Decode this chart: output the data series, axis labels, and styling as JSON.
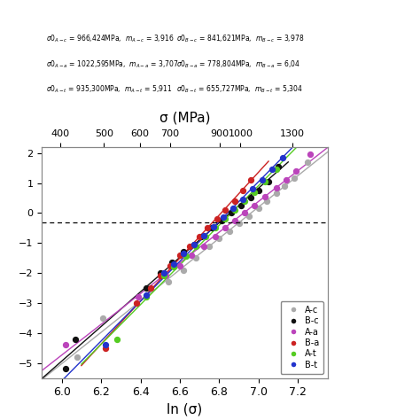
{
  "title_top": "σ (MPa)",
  "xlabel": "ln (σ)",
  "top_ticks": [
    400,
    500,
    600,
    700,
    900,
    1000,
    1300
  ],
  "xlim": [
    5.9,
    7.35
  ],
  "ylim": [
    -5.5,
    2.2
  ],
  "dotted_line_y": -0.3,
  "series": [
    {
      "label": "A-c",
      "color": "#aaaaaa",
      "data_x": [
        6.08,
        6.21,
        6.54,
        6.62,
        6.68,
        6.75,
        6.8,
        6.85,
        6.9,
        6.95,
        7.0,
        7.04,
        7.09,
        7.13,
        7.18,
        7.25
      ],
      "data_y": [
        -4.8,
        -3.5,
        -2.3,
        -1.9,
        -1.5,
        -1.1,
        -0.85,
        -0.6,
        -0.35,
        -0.1,
        0.15,
        0.4,
        0.65,
        0.9,
        1.15,
        1.7
      ],
      "line_x": [
        5.9,
        7.35
      ]
    },
    {
      "label": "B-c",
      "color": "#111111",
      "data_x": [
        6.02,
        6.07,
        6.43,
        6.5,
        6.56,
        6.62,
        6.67,
        6.71,
        6.76,
        6.81,
        6.86,
        6.91,
        6.96,
        7.0,
        7.05,
        7.1
      ],
      "data_y": [
        -5.2,
        -4.2,
        -2.5,
        -2.0,
        -1.65,
        -1.3,
        -1.05,
        -0.8,
        -0.5,
        -0.25,
        0.0,
        0.25,
        0.5,
        0.75,
        1.05,
        1.55
      ],
      "line_x": [
        5.9,
        7.15
      ]
    },
    {
      "label": "A-a",
      "color": "#bb44bb",
      "data_x": [
        6.02,
        6.39,
        6.53,
        6.6,
        6.66,
        6.72,
        6.78,
        6.83,
        6.88,
        6.93,
        6.98,
        7.03,
        7.09,
        7.14,
        7.19,
        7.26
      ],
      "data_y": [
        -4.4,
        -2.8,
        -2.1,
        -1.75,
        -1.4,
        -1.1,
        -0.8,
        -0.5,
        -0.25,
        0.0,
        0.25,
        0.55,
        0.85,
        1.1,
        1.4,
        1.95
      ],
      "line_x": [
        5.9,
        7.35
      ]
    },
    {
      "label": "B-a",
      "color": "#cc2222",
      "data_x": [
        6.22,
        6.38,
        6.45,
        6.5,
        6.55,
        6.6,
        6.65,
        6.7,
        6.74,
        6.79,
        6.83,
        6.88,
        6.92,
        6.96
      ],
      "data_y": [
        -4.5,
        -3.0,
        -2.5,
        -2.1,
        -1.75,
        -1.4,
        -1.1,
        -0.8,
        -0.5,
        -0.2,
        0.1,
        0.4,
        0.75,
        1.1
      ],
      "line_x": [
        6.1,
        7.05
      ]
    },
    {
      "label": "A-t",
      "color": "#55cc22",
      "data_x": [
        6.28,
        6.43,
        6.52,
        6.57,
        6.63,
        6.68,
        6.73,
        6.78,
        6.83,
        6.88,
        6.93,
        6.98,
        7.03,
        7.09
      ],
      "data_y": [
        -4.2,
        -2.8,
        -2.1,
        -1.8,
        -1.45,
        -1.1,
        -0.8,
        -0.5,
        -0.2,
        0.1,
        0.4,
        0.7,
        1.05,
        1.45
      ],
      "line_x": [
        6.1,
        7.2
      ]
    },
    {
      "label": "B-t",
      "color": "#2233cc",
      "data_x": [
        6.22,
        6.43,
        6.52,
        6.57,
        6.62,
        6.67,
        6.72,
        6.77,
        6.82,
        6.87,
        6.92,
        6.97,
        7.02,
        7.07,
        7.12
      ],
      "data_y": [
        -4.4,
        -2.75,
        -2.0,
        -1.7,
        -1.35,
        -1.05,
        -0.75,
        -0.45,
        -0.15,
        0.15,
        0.45,
        0.8,
        1.1,
        1.45,
        1.85
      ],
      "line_x": [
        5.9,
        7.25
      ]
    }
  ],
  "ann_left": [
    "σ0_{A-c} = 966,424MPa,  m_{A-c} = 3,916",
    "σ0_{A-a} = 1022,595MPa,  m_{A-a} = 3,707",
    "σ0_{A-t} = 935,300MPa,  m_{A-t} = 5,911"
  ],
  "ann_right": [
    "σ0_{B-c} = 841,621MPa,  m_{B-c} = 3,978",
    "σ0_{B-a} = 778,804MPa,  m_{B-a} = 6,04",
    "σ0_{B-t} = 655,727MPa,  m_{B-t} = 5,304"
  ],
  "background_color": "#ffffff"
}
